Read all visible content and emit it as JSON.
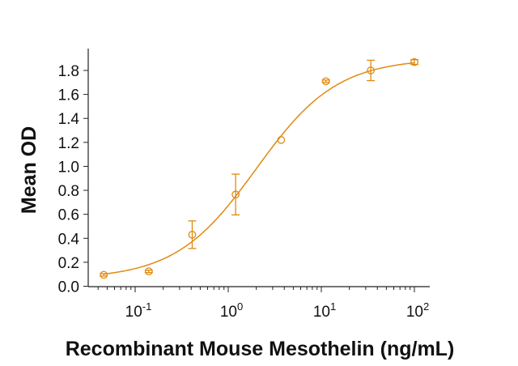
{
  "chart_data": {
    "type": "scatter",
    "title": "",
    "xlabel": "Recombinant Mouse Mesothelin (ng/mL)",
    "ylabel": "Mean OD",
    "xscale": "log",
    "xlim": [
      0.035,
      140
    ],
    "ylim": [
      0,
      1.95
    ],
    "xticks": [
      0.1,
      1,
      10,
      100
    ],
    "xtick_labels": [
      {
        "base": "10",
        "exp": "-1"
      },
      {
        "base": "10",
        "exp": "0"
      },
      {
        "base": "10",
        "exp": "1"
      },
      {
        "base": "10",
        "exp": "2"
      }
    ],
    "yticks": [
      "0.0",
      "0.2",
      "0.4",
      "0.6",
      "0.8",
      "1.0",
      "1.2",
      "1.4",
      "1.6",
      "1.8"
    ],
    "grid": false,
    "color": "#E08A10",
    "points": [
      {
        "x": 0.046,
        "y": 0.095,
        "err": 0.01
      },
      {
        "x": 0.14,
        "y": 0.124,
        "err": 0.01
      },
      {
        "x": 0.41,
        "y": 0.43,
        "err": 0.115
      },
      {
        "x": 1.2,
        "y": 0.765,
        "err": 0.17
      },
      {
        "x": 3.7,
        "y": 1.22,
        "err": 0.0
      },
      {
        "x": 11.2,
        "y": 1.71,
        "err": 0.01
      },
      {
        "x": 34,
        "y": 1.8,
        "err": 0.085
      },
      {
        "x": 100,
        "y": 1.87,
        "err": 0.02
      }
    ],
    "fit": {
      "model": "4PL",
      "bottom": 0.06,
      "top": 1.9,
      "ec50": 2.0,
      "hill": 1.0
    }
  }
}
